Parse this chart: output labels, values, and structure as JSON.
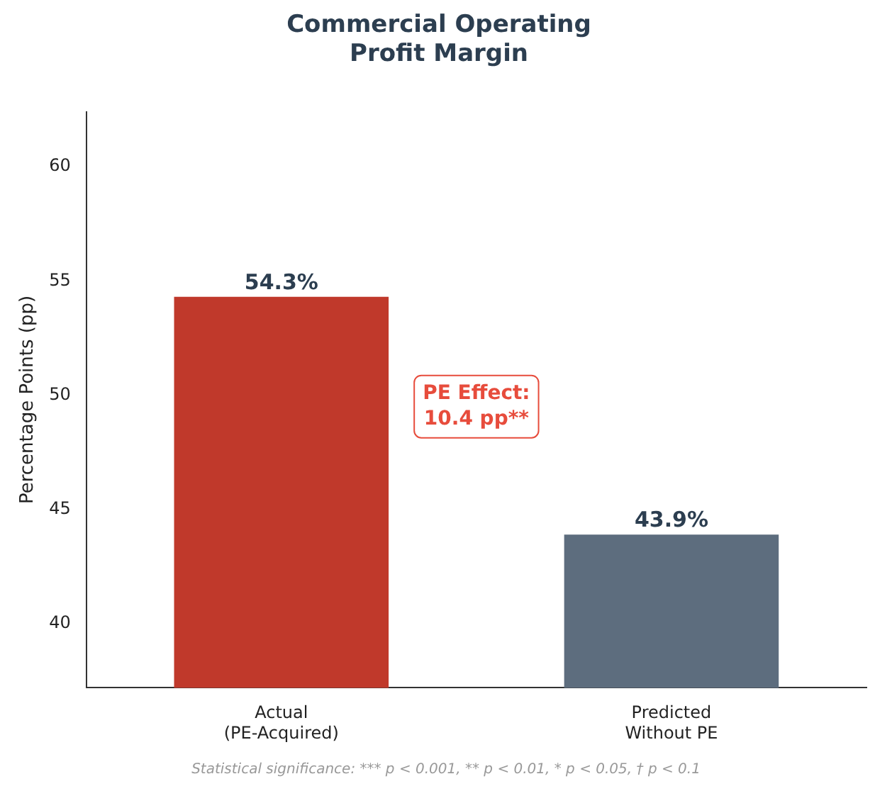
{
  "chart_data": {
    "type": "bar",
    "title": "Commercial Operating\nProfit Margin",
    "ylabel": "Percentage Points (pp)",
    "categories": [
      "Actual\n(PE-Acquired)",
      "Predicted\nWithout PE"
    ],
    "values": [
      54.3,
      43.9
    ],
    "colors": [
      "#c0392b",
      "#5d6d7e"
    ],
    "value_labels": [
      "54.3%",
      "43.9%"
    ],
    "ylim": [
      37.2,
      62.4
    ],
    "yticks": [
      40,
      45,
      50,
      55,
      60
    ],
    "grid": false,
    "legend": false,
    "annotations": [
      "PE Effect:\n10.4 pp**",
      "Statistical significance: *** p < 0.001, ** p < 0.01, * p < 0.05, † p < 0.1"
    ]
  }
}
